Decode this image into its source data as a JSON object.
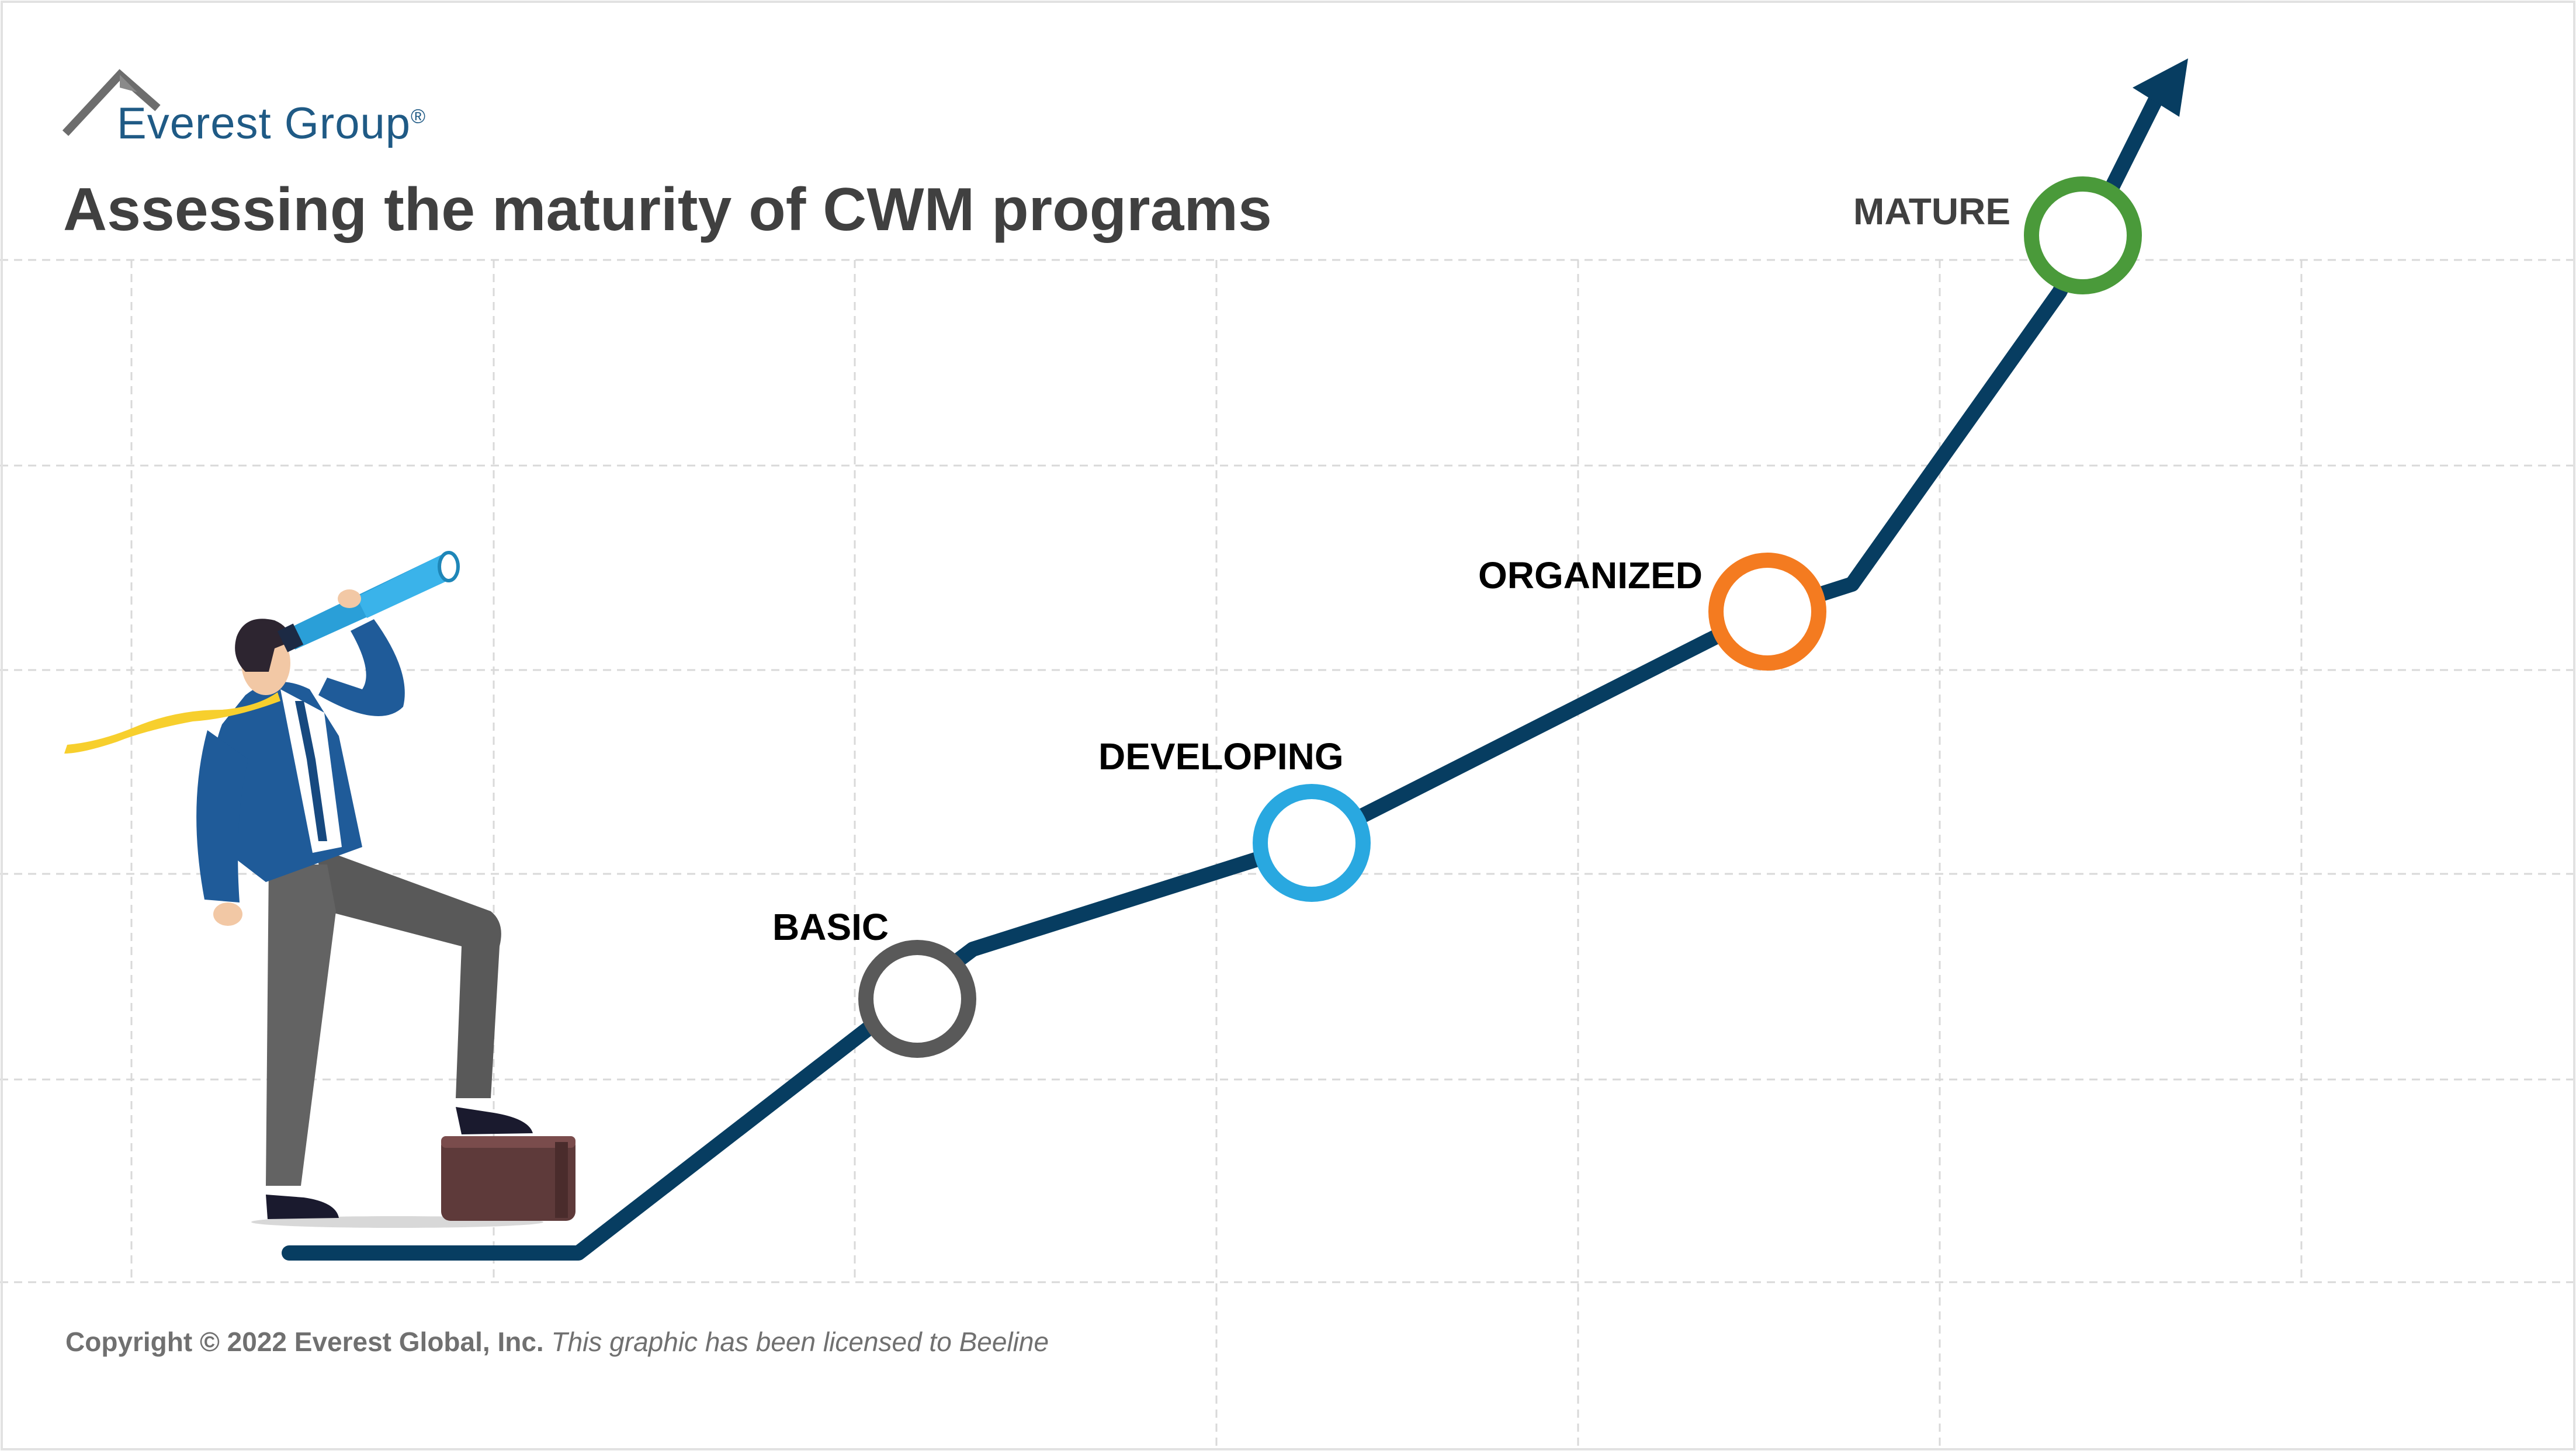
{
  "brand": {
    "name": "Everest Group",
    "registered": "®",
    "color": "#1f5a85"
  },
  "title": "Assessing the maturity of CWM programs",
  "stages": [
    {
      "label": "BASIC",
      "color": "#595959",
      "label_color": "#000000"
    },
    {
      "label": "DEVELOPING",
      "color": "#29a8e0",
      "label_color": "#000000"
    },
    {
      "label": "ORGANIZED",
      "color": "#f47b20",
      "label_color": "#000000"
    },
    {
      "label": "MATURE",
      "color": "#4a9a3a",
      "label_color": "#404040"
    }
  ],
  "line_color": "#073d61",
  "footer": {
    "copyright": "Copyright © 2022 Everest Global, Inc.",
    "license": "This graphic has been licensed to Beeline"
  },
  "illustration": {
    "subject": "businessman looking through telescope",
    "icons": [
      "telescope-icon",
      "briefcase-icon",
      "logo-mountain-icon"
    ]
  }
}
